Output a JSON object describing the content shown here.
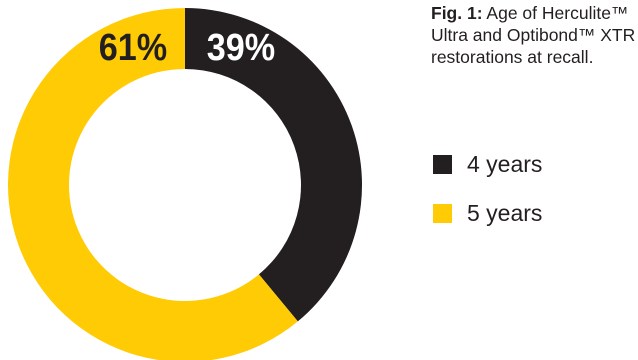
{
  "chart_data": {
    "type": "pie",
    "donut": true,
    "title": "",
    "categories": [
      "4 years",
      "5 years"
    ],
    "values": [
      39,
      61
    ],
    "value_labels": [
      "39%",
      "61%"
    ],
    "colors": [
      "#231f20",
      "#ffcb05"
    ],
    "legend_placement": "right"
  },
  "caption": {
    "fig_label": "Fig. 1:",
    "text": " Age of Herculite™ Ultra and Optibond™ XTR restorations at recall."
  },
  "legend": [
    {
      "label": "4 years",
      "color": "#231f20"
    },
    {
      "label": "5 years",
      "color": "#ffcb05"
    }
  ]
}
